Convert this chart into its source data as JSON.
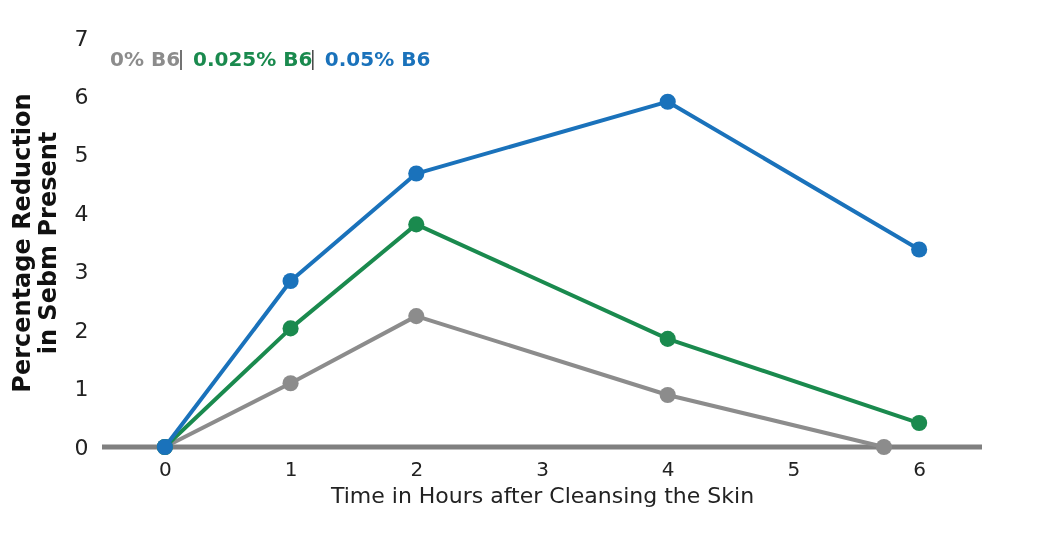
{
  "chart_data": {
    "type": "line",
    "xlabel": "Time in Hours after Cleansing the Skin",
    "ylabel": "Percentage Reduction\nin Sebm Present",
    "x": [
      0,
      1,
      2,
      4,
      6
    ],
    "series": [
      {
        "name": "0% B6",
        "color": "#8c8c8c",
        "x": [
          0,
          1,
          2,
          4,
          5.72
        ],
        "values": [
          0,
          1.09,
          2.24,
          0.89,
          0
        ]
      },
      {
        "name": "0.025% B6",
        "color": "#1a8a4e",
        "values": [
          0,
          2.03,
          3.81,
          1.85,
          0.41
        ]
      },
      {
        "name": "0.05% B6",
        "color": "#1a72bb",
        "values": [
          0,
          2.84,
          4.68,
          5.91,
          3.38
        ]
      }
    ],
    "xlim": [
      -0.5,
      6.5
    ],
    "xticks": [
      0,
      1,
      2,
      3,
      4,
      5,
      6
    ],
    "ylim": [
      0,
      7
    ],
    "yticks": [
      0,
      1,
      2,
      3,
      4,
      5,
      6,
      7
    ],
    "grid": false,
    "legend": "top left",
    "marker": "circle",
    "line_style": "solid"
  }
}
